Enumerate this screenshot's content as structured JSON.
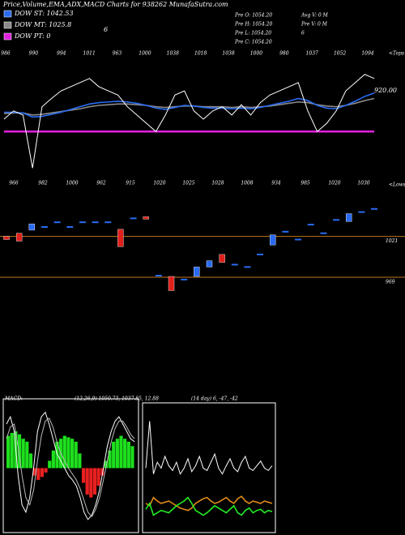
{
  "header": {
    "title": "Price,Volume,EMA,ADX,MACD Charts for 938262 MunafaSutra.com",
    "legend_note": "6",
    "info_left": [
      "Pre   O: 1054.20",
      "Pre   H: 1054.20",
      "Pre   L: 1054.20",
      "Pre   C: 1054.20"
    ],
    "info_right": [
      "Avg V: 0  M",
      "Pre  V: 0  M",
      "6"
    ]
  },
  "chart_data": [
    {
      "type": "line",
      "tops_marker": "<Tops",
      "lows_marker": "<Lows",
      "right_label": "920.00",
      "tops": [
        986,
        990,
        994,
        1011,
        963,
        1000,
        1038,
        1018,
        1038,
        1000,
        980,
        1037,
        1052,
        1094
      ],
      "lows": [
        966,
        982,
        1000,
        962,
        915,
        1020,
        1025,
        1028,
        1008,
        934,
        985,
        1020,
        1030
      ],
      "ylim": [
        900,
        1100
      ],
      "series": [
        {
          "color": "#ffffff",
          "values": [
            1000,
            1012,
            1006,
            929,
            1018,
            1030,
            1041,
            1047,
            1053,
            1059,
            1047,
            1041,
            1035,
            1018,
            1006,
            994,
            982,
            1006,
            1035,
            1041,
            1012,
            1000,
            1012,
            1018,
            1006,
            1021,
            1006,
            1024,
            1035,
            1041,
            1047,
            1053,
            1012,
            982,
            994,
            1012,
            1041,
            1053,
            1065,
            1059
          ]
        },
        {
          "name": "DOW ST: 1042.53",
          "color": "#2a6bf2",
          "values": [
            1010,
            1010,
            1009,
            1003,
            1004,
            1007,
            1010,
            1014,
            1018,
            1022,
            1024,
            1025,
            1026,
            1025,
            1023,
            1020,
            1016,
            1014,
            1017,
            1020,
            1019,
            1017,
            1016,
            1016,
            1015,
            1016,
            1015,
            1017,
            1020,
            1023,
            1026,
            1030,
            1027,
            1020,
            1016,
            1015,
            1020,
            1026,
            1033,
            1038
          ]
        },
        {
          "name": "DOW MT: 1025.8",
          "color": "#8a8a8a",
          "values": [
            1008,
            1009,
            1009,
            1006,
            1007,
            1009,
            1011,
            1013,
            1015,
            1018,
            1020,
            1021,
            1022,
            1022,
            1021,
            1020,
            1018,
            1017,
            1018,
            1019,
            1019,
            1018,
            1018,
            1018,
            1017,
            1018,
            1017,
            1018,
            1019,
            1021,
            1023,
            1025,
            1024,
            1021,
            1019,
            1018,
            1020,
            1023,
            1027,
            1030
          ]
        },
        {
          "name": "DOW PT: 0",
          "color": "#e020e0",
          "values": [
            982,
            982,
            982,
            982,
            982,
            982,
            982,
            982,
            982,
            982,
            982,
            982,
            982,
            982,
            982,
            982,
            982,
            982,
            982,
            982,
            982,
            982,
            982,
            982,
            982,
            982,
            982,
            982,
            982,
            982,
            982,
            982,
            982,
            982,
            982,
            982,
            982,
            982,
            982,
            982
          ]
        }
      ]
    },
    {
      "type": "candlestick",
      "ylim": [
        938,
        1064
      ],
      "levels": [
        1021,
        969
      ],
      "open": [
        1021,
        1025,
        1029,
        1033,
        1039,
        1033,
        1039,
        1039,
        1039,
        1030,
        1044,
        1046,
        971,
        970,
        966,
        970,
        982,
        998,
        985,
        982,
        998,
        1010,
        1027,
        1017,
        1036,
        1025,
        1042,
        1040,
        1052,
        1056
      ],
      "close": [
        1017,
        1015,
        1037,
        1033,
        1039,
        1033,
        1039,
        1039,
        1039,
        1008,
        1044,
        1043,
        971,
        952,
        966,
        982,
        990,
        988,
        985,
        982,
        998,
        1023,
        1027,
        1017,
        1036,
        1025,
        1042,
        1050,
        1052,
        1056
      ]
    },
    {
      "type": "combo",
      "label": "MACD:",
      "params": "(12,26,9) 1050.73, 1037.85, 12.88",
      "ylim": [
        -40,
        40
      ],
      "histogram": [
        22,
        24,
        25,
        23,
        20,
        18,
        10,
        -5,
        -8,
        -6,
        -3,
        5,
        12,
        18,
        20,
        22,
        21,
        20,
        18,
        10,
        -10,
        -18,
        -20,
        -18,
        -12,
        -5,
        5,
        12,
        18,
        20,
        22,
        20,
        18,
        15
      ],
      "series": [
        {
          "color": "#ffffff",
          "values": [
            30,
            35,
            25,
            -5,
            -25,
            -30,
            -20,
            0,
            25,
            35,
            38,
            30,
            20,
            10,
            5,
            0,
            -5,
            -8,
            -12,
            -20,
            -30,
            -35,
            -32,
            -25,
            -15,
            0,
            15,
            25,
            32,
            35,
            30,
            25,
            20,
            18
          ]
        },
        {
          "color": "#bbbbbb",
          "values": [
            20,
            28,
            30,
            15,
            -5,
            -20,
            -25,
            -15,
            5,
            22,
            32,
            34,
            28,
            18,
            10,
            5,
            0,
            -4,
            -8,
            -14,
            -22,
            -30,
            -33,
            -28,
            -20,
            -8,
            5,
            18,
            27,
            32,
            32,
            28,
            23,
            20
          ]
        }
      ]
    },
    {
      "type": "line",
      "params": "(14 day) 6, -47, -42",
      "ylim": [
        0,
        100
      ],
      "series": [
        {
          "color": "#ffffff",
          "values": [
            50,
            90,
            45,
            55,
            50,
            60,
            52,
            48,
            55,
            45,
            50,
            58,
            47,
            52,
            60,
            50,
            48,
            55,
            62,
            50,
            45,
            52,
            58,
            50,
            47,
            55,
            60,
            50,
            48,
            52,
            56,
            50,
            48,
            52
          ]
        },
        {
          "color": "#22ee22",
          "values": [
            15,
            20,
            10,
            12,
            14,
            13,
            12,
            15,
            18,
            20,
            22,
            25,
            20,
            14,
            12,
            10,
            12,
            15,
            18,
            16,
            14,
            12,
            15,
            18,
            12,
            10,
            14,
            16,
            12,
            14,
            15,
            12,
            14,
            13
          ]
        },
        {
          "color": "#e08a1a",
          "values": [
            20,
            18,
            25,
            22,
            20,
            21,
            22,
            20,
            18,
            16,
            15,
            14,
            16,
            20,
            22,
            24,
            25,
            22,
            20,
            21,
            23,
            25,
            22,
            20,
            24,
            26,
            22,
            20,
            22,
            21,
            20,
            22,
            21,
            20
          ]
        }
      ]
    }
  ]
}
